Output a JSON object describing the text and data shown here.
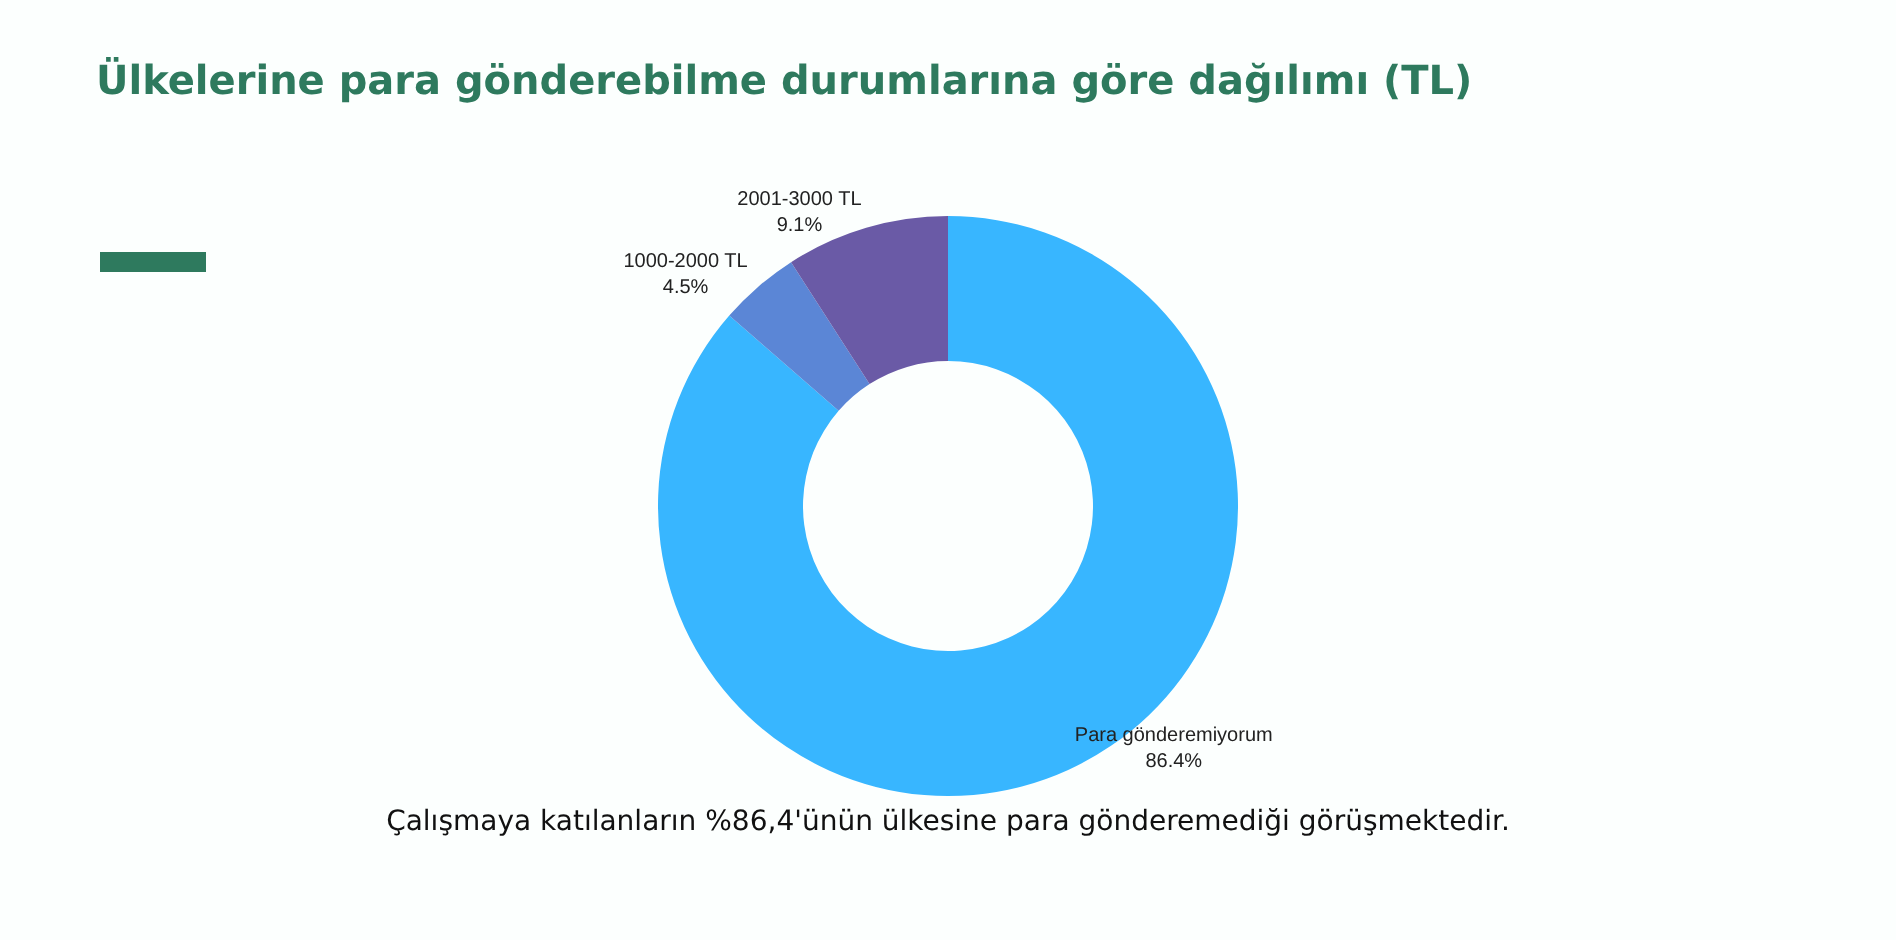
{
  "chart_data": {
    "type": "donut",
    "title": "Ülkelerine para gönderebilme durumlarına göre dağılımı (TL)",
    "categories": [
      "Para gönderemiyorum",
      "1000-2000 TL",
      "2001-3000 TL"
    ],
    "values": [
      86.4,
      4.5,
      9.1
    ],
    "value_labels": [
      "86.4%",
      "4.5%",
      "9.1%"
    ],
    "colors": [
      "#38b6ff",
      "#5b86d6",
      "#6a5aa6"
    ],
    "legend": false,
    "annotations": [
      "Çalışmaya katılanların %86,4'ünün ülkesine para gönderemediği görüşmektedir."
    ]
  }
}
